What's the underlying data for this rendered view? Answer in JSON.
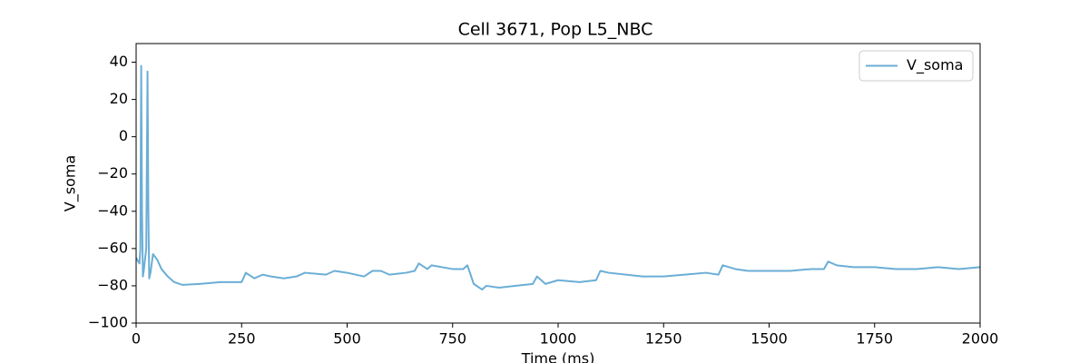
{
  "chart_data": {
    "type": "line",
    "title": "Cell 3671, Pop L5_NBC",
    "x_label": "Time (ms)",
    "y_label": "V_soma",
    "x": [
      0,
      5,
      8,
      10,
      12,
      14,
      16,
      18,
      20,
      24,
      27,
      29,
      31,
      34,
      40,
      50,
      60,
      75,
      90,
      110,
      150,
      200,
      250,
      260,
      280,
      300,
      320,
      350,
      380,
      400,
      450,
      470,
      500,
      540,
      560,
      580,
      600,
      640,
      660,
      670,
      690,
      700,
      750,
      775,
      785,
      800,
      820,
      830,
      860,
      900,
      940,
      950,
      970,
      1000,
      1050,
      1090,
      1100,
      1120,
      1200,
      1250,
      1300,
      1350,
      1380,
      1390,
      1420,
      1450,
      1500,
      1550,
      1600,
      1630,
      1640,
      1660,
      1700,
      1750,
      1800,
      1850,
      1900,
      1950,
      2000
    ],
    "series": [
      {
        "name": "V_soma",
        "color": "#6baed6",
        "values": [
          -65,
          -67,
          -68,
          -60,
          38,
          -40,
          -75,
          -72,
          -68,
          -60,
          35,
          -40,
          -76,
          -73,
          -63,
          -66,
          -71,
          -75,
          -78,
          -79.5,
          -79,
          -78,
          -78,
          -73,
          -76,
          -74,
          -75,
          -76,
          -75,
          -73,
          -74,
          -72,
          -73,
          -75,
          -72,
          -72,
          -74,
          -73,
          -72,
          -68,
          -71,
          -69,
          -71,
          -71,
          -69,
          -79,
          -82,
          -80,
          -81,
          -80,
          -79,
          -75,
          -79,
          -77,
          -78,
          -77,
          -72,
          -73,
          -75,
          -75,
          -74,
          -73,
          -74,
          -69,
          -71,
          -72,
          -72,
          -72,
          -71,
          -71,
          -67,
          -69,
          -70,
          -70,
          -71,
          -71,
          -70,
          -71,
          -70
        ]
      }
    ],
    "xlim": [
      0,
      2000
    ],
    "xticks": [
      0,
      250,
      500,
      750,
      1000,
      1250,
      1500,
      1750,
      2000
    ],
    "ylim": [
      -100,
      50
    ],
    "yticks": [
      {
        "value": -100,
        "label": "−100"
      },
      {
        "value": -80,
        "label": "−80"
      },
      {
        "value": -60,
        "label": "−60"
      },
      {
        "value": -40,
        "label": "−40"
      },
      {
        "value": -20,
        "label": "−20"
      },
      0,
      20,
      40
    ],
    "legend": "upper right"
  }
}
